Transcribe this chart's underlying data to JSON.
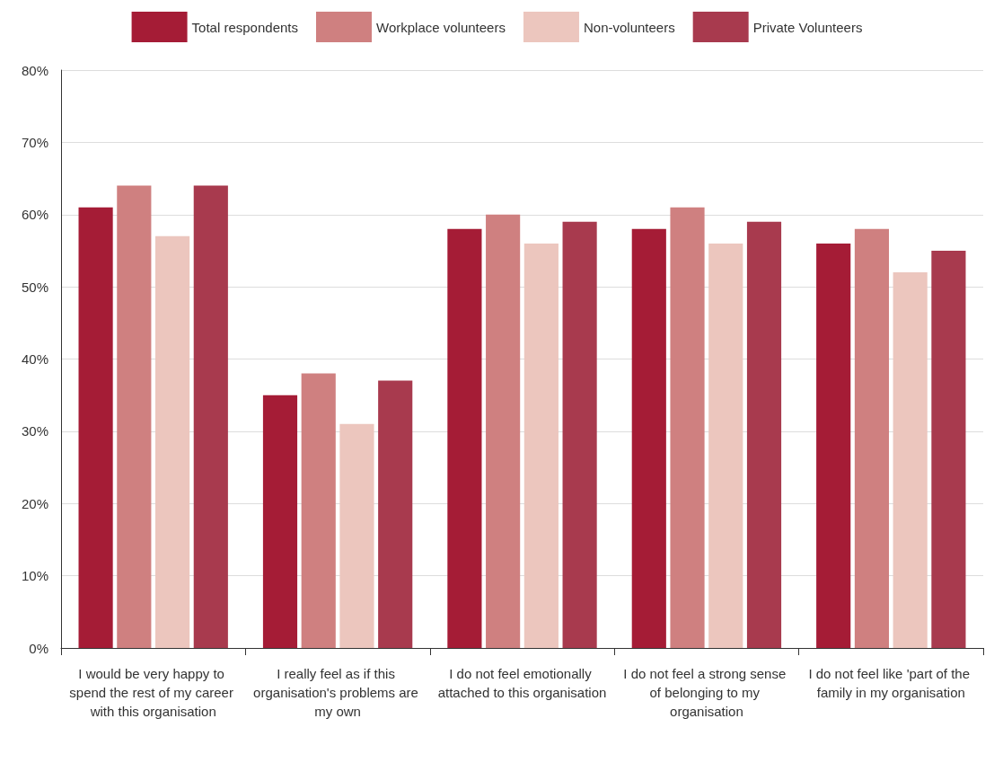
{
  "chart_data": {
    "type": "bar",
    "categories": [
      "I would be very happy to spend the rest of my career with this organisation",
      "I really feel as if this organisation's problems are my own",
      "I do not feel emotionally attached to this organisation",
      "I do not feel a strong sense of belonging to my organisation",
      "I do not feel like 'part of the family in my organisation"
    ],
    "series": [
      {
        "name": "Total respondents",
        "color": "#a51c36",
        "values": [
          61,
          35,
          58,
          58,
          56
        ]
      },
      {
        "name": "Workplace volunteers",
        "color": "#cf8080",
        "values": [
          64,
          38,
          60,
          61,
          58
        ]
      },
      {
        "name": "Non-volunteers",
        "color": "#ecc6be",
        "values": [
          57,
          31,
          56,
          56,
          52
        ]
      },
      {
        "name": "Private Volunteers",
        "color": "#a83a4e",
        "values": [
          64,
          37,
          59,
          59,
          55
        ]
      }
    ],
    "ylim": [
      0,
      80
    ],
    "yticks": [
      {
        "value": 0,
        "label": "0%"
      },
      {
        "value": 10,
        "label": "10%"
      },
      {
        "value": 20,
        "label": "20%"
      },
      {
        "value": 30,
        "label": "30%"
      },
      {
        "value": 40,
        "label": "40%"
      },
      {
        "value": 50,
        "label": "50%"
      },
      {
        "value": 60,
        "label": "60%"
      },
      {
        "value": 70,
        "label": "70%"
      },
      {
        "value": 80,
        "label": "80%"
      }
    ],
    "grid": "y",
    "legend": "top"
  }
}
